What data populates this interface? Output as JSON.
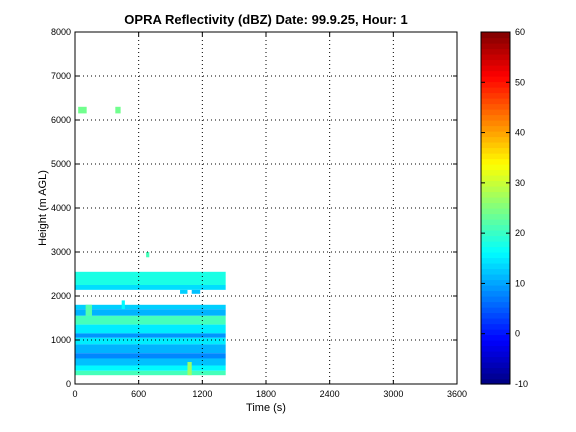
{
  "chart_data": {
    "type": "heatmap",
    "title": "OPRA Reflectivity (dBZ)  Date: 99.9.25, Hour: 1",
    "xlabel": "Time (s)",
    "ylabel": "Height (m AGL)",
    "xlim": [
      0,
      3600
    ],
    "ylim": [
      0,
      8000
    ],
    "xticks": [
      0,
      600,
      1200,
      1800,
      2400,
      3000,
      3600
    ],
    "yticks": [
      0,
      1000,
      2000,
      3000,
      4000,
      5000,
      6000,
      7000,
      8000
    ],
    "grid": true,
    "grid_style": "dotted",
    "colormap": "jet",
    "colorbar": {
      "min": -10,
      "max": 60,
      "ticks": [
        -10,
        0,
        10,
        20,
        30,
        40,
        50,
        60
      ]
    },
    "cells": [
      {
        "t": [
          30,
          110
        ],
        "h": [
          6150,
          6300
        ],
        "dbz": 24
      },
      {
        "t": [
          380,
          430
        ],
        "h": [
          6150,
          6300
        ],
        "dbz": 24
      },
      {
        "t": [
          670,
          700
        ],
        "h": [
          2880,
          3000
        ],
        "dbz": 21
      },
      {
        "t": [
          0,
          1420
        ],
        "h": [
          2250,
          2550
        ],
        "dbz": 18
      },
      {
        "t": [
          0,
          1420
        ],
        "h": [
          2140,
          2250
        ],
        "dbz": 14
      },
      {
        "t": [
          990,
          1060
        ],
        "h": [
          2050,
          2140
        ],
        "dbz": 13
      },
      {
        "t": [
          1100,
          1180
        ],
        "h": [
          2050,
          2140
        ],
        "dbz": 12
      },
      {
        "t": [
          0,
          1420
        ],
        "h": [
          1700,
          1800
        ],
        "dbz": 13
      },
      {
        "t": [
          0,
          1420
        ],
        "h": [
          1550,
          1700
        ],
        "dbz": 11
      },
      {
        "t": [
          0,
          1420
        ],
        "h": [
          1350,
          1550
        ],
        "dbz": 21
      },
      {
        "t": [
          0,
          1420
        ],
        "h": [
          1150,
          1350
        ],
        "dbz": 15
      },
      {
        "t": [
          0,
          1420
        ],
        "h": [
          1050,
          1150
        ],
        "dbz": 9
      },
      {
        "t": [
          0,
          1420
        ],
        "h": [
          900,
          1050
        ],
        "dbz": 15
      },
      {
        "t": [
          0,
          1420
        ],
        "h": [
          700,
          900
        ],
        "dbz": 11
      },
      {
        "t": [
          0,
          1420
        ],
        "h": [
          580,
          700
        ],
        "dbz": 8
      },
      {
        "t": [
          0,
          1420
        ],
        "h": [
          420,
          580
        ],
        "dbz": 12
      },
      {
        "t": [
          0,
          1420
        ],
        "h": [
          300,
          420
        ],
        "dbz": 16
      },
      {
        "t": [
          0,
          1420
        ],
        "h": [
          200,
          300
        ],
        "dbz": 21
      },
      {
        "t": [
          100,
          160
        ],
        "h": [
          1550,
          1800
        ],
        "dbz": 22
      },
      {
        "t": [
          440,
          470
        ],
        "h": [
          1700,
          1900
        ],
        "dbz": 16
      },
      {
        "t": [
          1060,
          1100
        ],
        "h": [
          200,
          500
        ],
        "dbz": 27
      }
    ]
  }
}
